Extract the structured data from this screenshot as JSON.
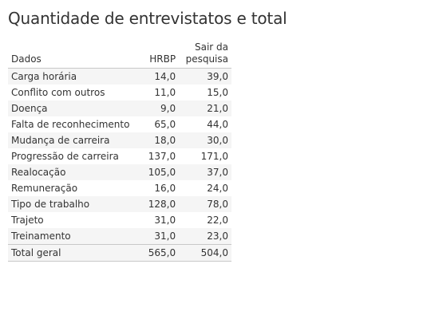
{
  "title": "Quantidade de entrevistatos e total",
  "table": {
    "headers": {
      "dimension": "Dados",
      "hrbp": "HRBP",
      "sair": [
        "Sair da",
        "pesquisa"
      ]
    },
    "rows": [
      {
        "label": "Carga horária",
        "hrbp": "14,0",
        "sair": "39,0"
      },
      {
        "label": "Conflito com outros",
        "hrbp": "11,0",
        "sair": "15,0"
      },
      {
        "label": "Doença",
        "hrbp": "9,0",
        "sair": "21,0"
      },
      {
        "label": "Falta de reconhecimento",
        "hrbp": "65,0",
        "sair": "44,0"
      },
      {
        "label": "Mudança de carreira",
        "hrbp": "18,0",
        "sair": "30,0"
      },
      {
        "label": "Progressão de carreira",
        "hrbp": "137,0",
        "sair": "171,0"
      },
      {
        "label": "Realocação",
        "hrbp": "105,0",
        "sair": "37,0"
      },
      {
        "label": "Remuneração",
        "hrbp": "16,0",
        "sair": "24,0"
      },
      {
        "label": "Tipo de trabalho",
        "hrbp": "128,0",
        "sair": "78,0"
      },
      {
        "label": "Trajeto",
        "hrbp": "31,0",
        "sair": "22,0"
      },
      {
        "label": "Treinamento",
        "hrbp": "31,0",
        "sair": "23,0"
      }
    ],
    "total": {
      "label": "Total geral",
      "hrbp": "565,0",
      "sair": "504,0"
    }
  }
}
